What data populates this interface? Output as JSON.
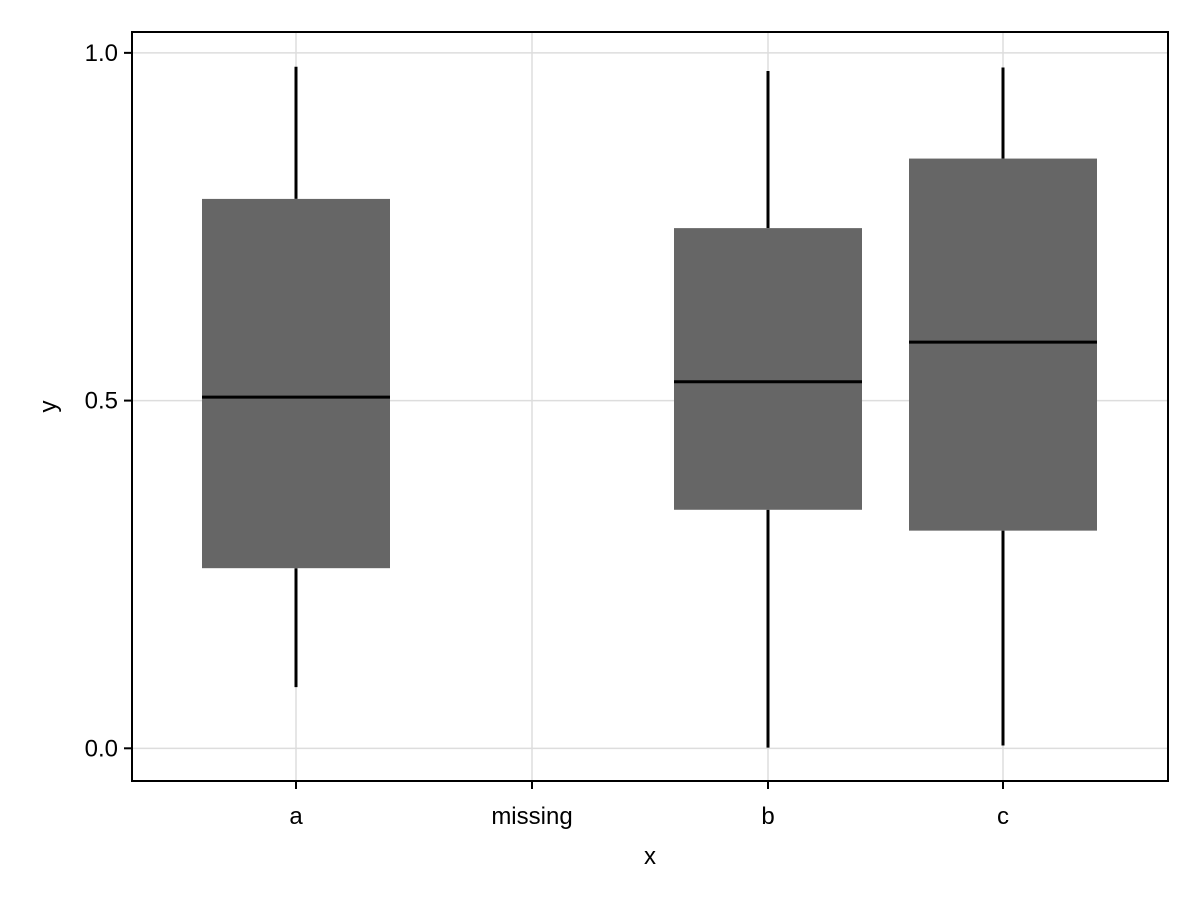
{
  "chart_data": {
    "type": "boxplot",
    "xlabel": "x",
    "ylabel": "y",
    "categories": [
      "a",
      "missing",
      "b",
      "c"
    ],
    "y_ticks": [
      {
        "value": 0.0,
        "label": "0.0"
      },
      {
        "value": 0.5,
        "label": "0.5"
      },
      {
        "value": 1.0,
        "label": "1.0"
      }
    ],
    "ylim": [
      -0.047,
      1.03
    ],
    "grid": true,
    "box_color": "#666666",
    "line_color": "#000000",
    "grid_color": "#dddddd",
    "boxes": [
      {
        "category": "a",
        "whisker_low": 0.088,
        "q1": 0.259,
        "median": 0.505,
        "q3": 0.79,
        "whisker_high": 0.98
      },
      {
        "category": "b",
        "whisker_low": 0.001,
        "q1": 0.343,
        "median": 0.527,
        "q3": 0.748,
        "whisker_high": 0.974
      },
      {
        "category": "c",
        "whisker_low": 0.004,
        "q1": 0.313,
        "median": 0.584,
        "q3": 0.848,
        "whisker_high": 0.979
      }
    ]
  }
}
